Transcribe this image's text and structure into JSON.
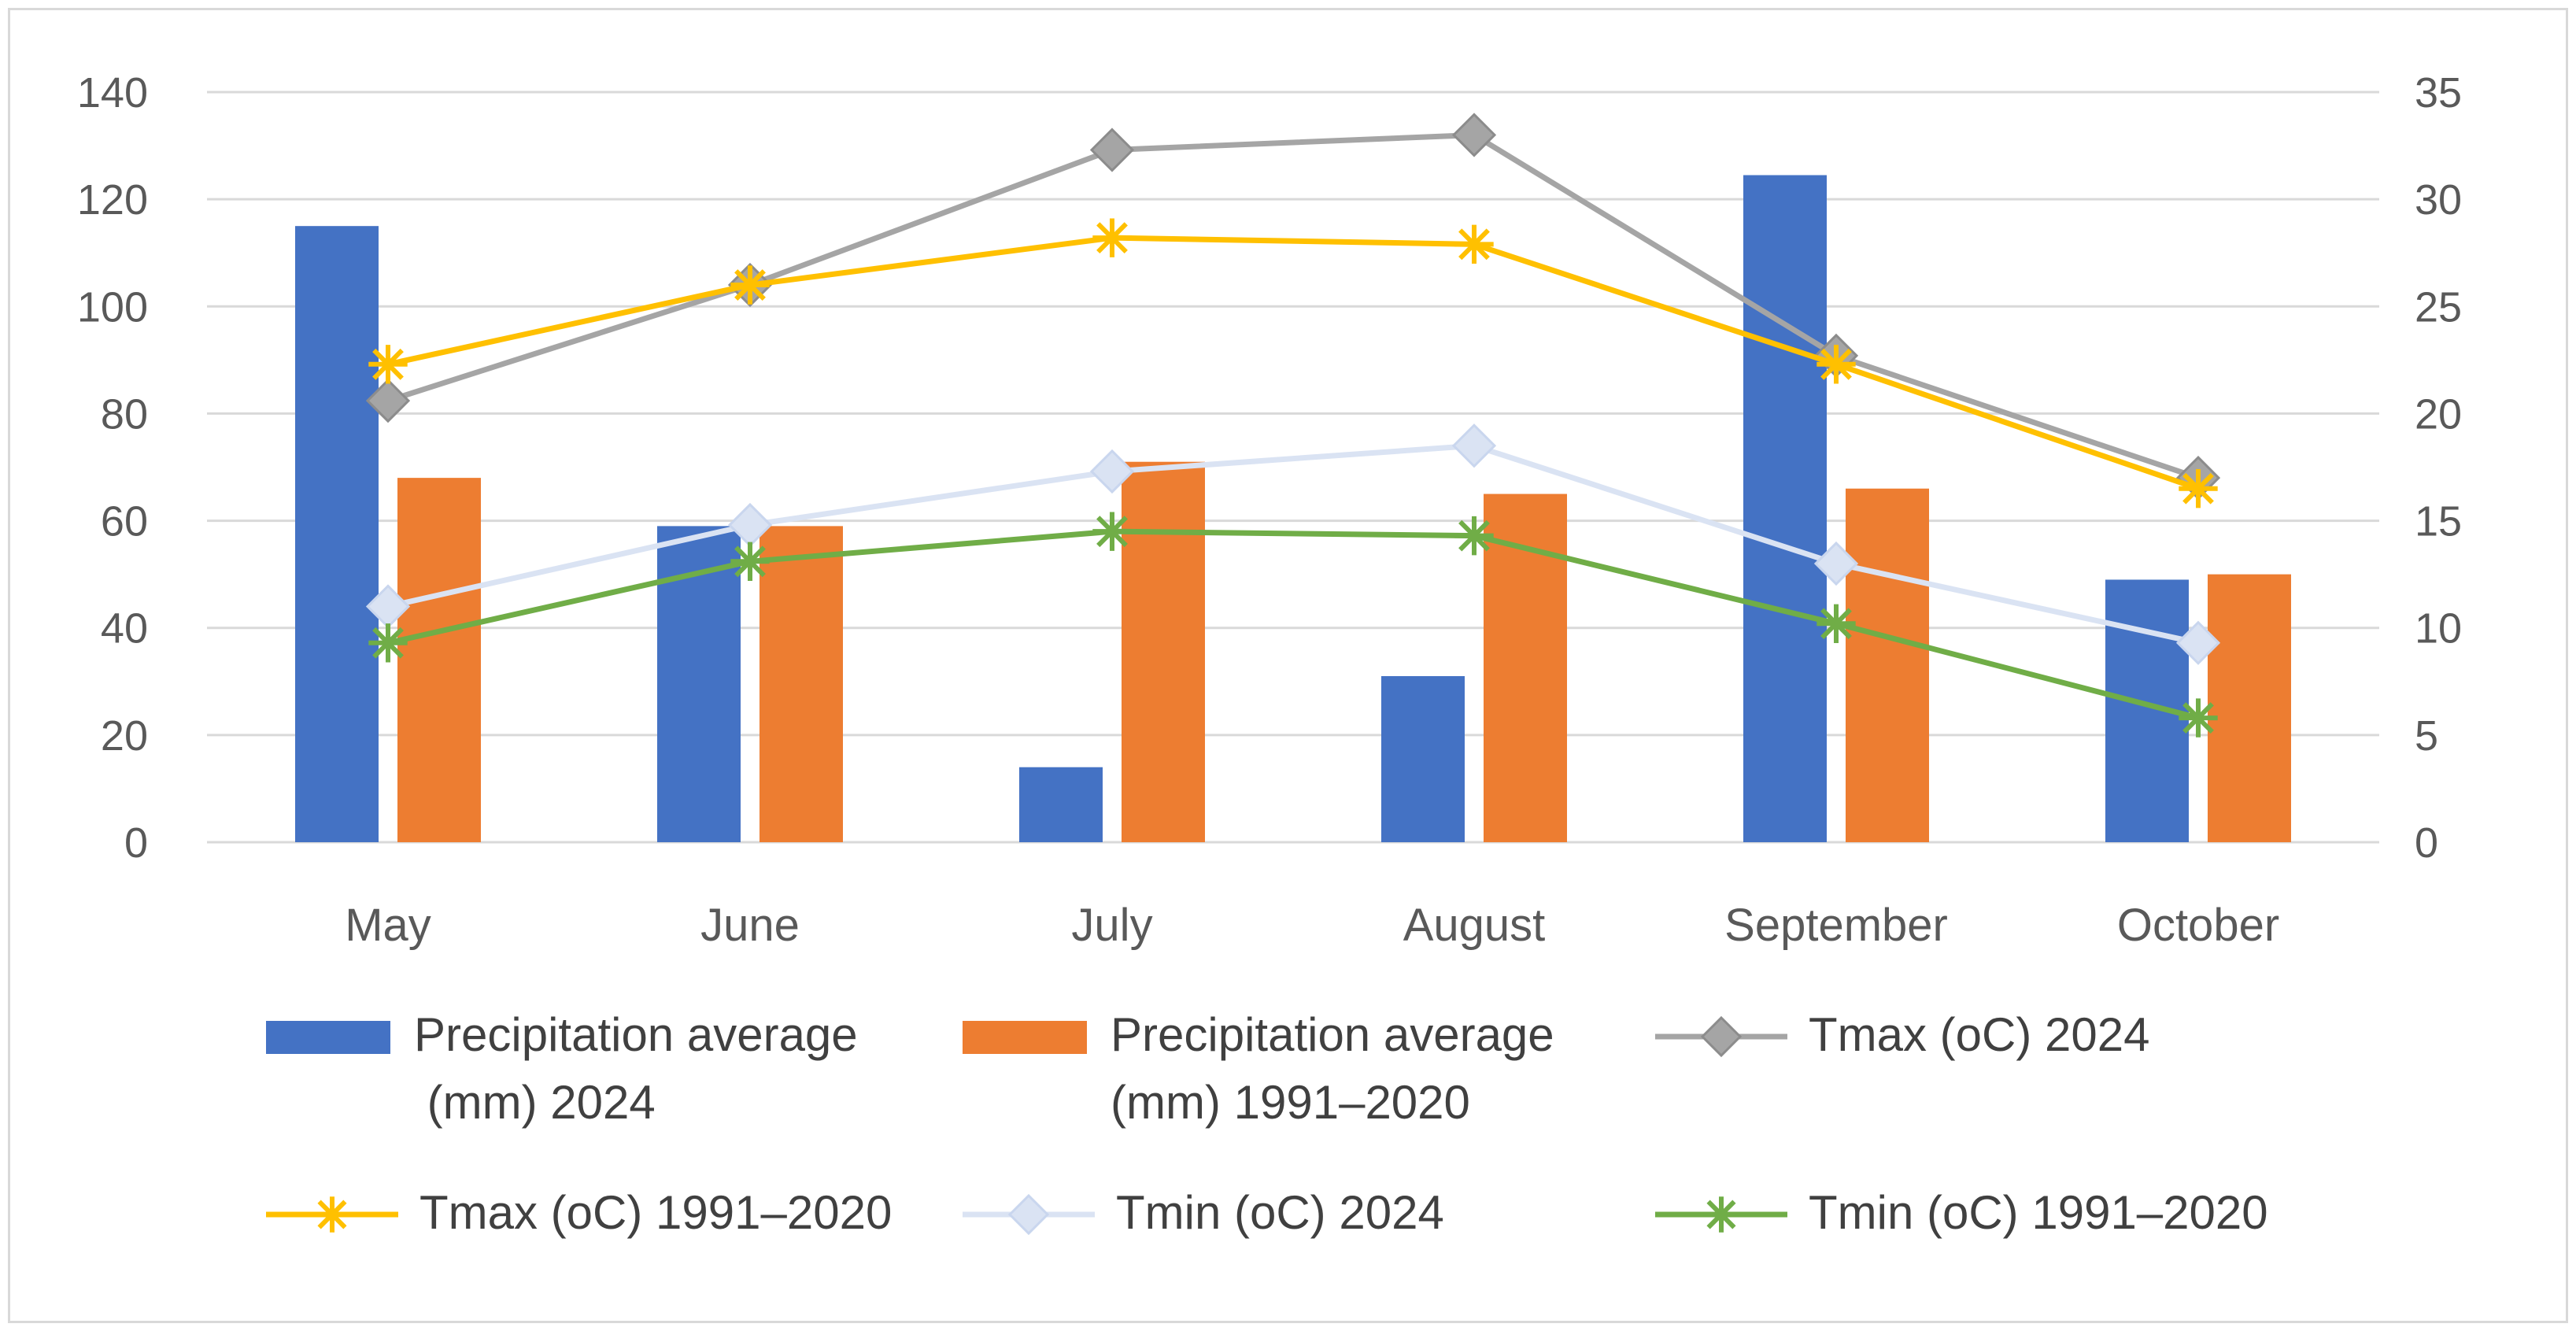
{
  "chart_data": {
    "type": "bar",
    "categories": [
      "May",
      "June",
      "July",
      "August",
      "September",
      "October"
    ],
    "bar_series": [
      {
        "name_lines": [
          "Precipitation average",
          " (mm) 2024"
        ],
        "color": "#4472c4",
        "values": [
          115,
          59,
          14,
          31,
          124.5,
          49
        ]
      },
      {
        "name_lines": [
          "Precipitation average",
          "(mm) 1991–2020"
        ],
        "color": "#ed7d31",
        "values": [
          68,
          59,
          71,
          65,
          66,
          50
        ]
      }
    ],
    "line_series": [
      {
        "name": "Tmax (oC) 2024",
        "color": "#a5a5a5",
        "marker": "diamond",
        "values": [
          20.6,
          26,
          32.3,
          33,
          22.7,
          17
        ]
      },
      {
        "name": "Tmax (oC) 1991–2020",
        "color": "#ffc000",
        "marker": "star",
        "values": [
          22.3,
          26,
          28.2,
          27.9,
          22.3,
          16.5
        ]
      },
      {
        "name": "Tmin (oC) 2024",
        "color": "#dae3f3",
        "marker": "diamond",
        "values": [
          11,
          14.8,
          17.3,
          18.5,
          13,
          9.3
        ]
      },
      {
        "name": "Tmin (oC) 1991–2020",
        "color": "#70ad47",
        "marker": "star",
        "values": [
          9.3,
          13.1,
          14.5,
          14.3,
          10.2,
          5.8
        ]
      }
    ],
    "y_left": {
      "min": 0,
      "max": 140,
      "step": 20,
      "ticks": [
        "0",
        "20",
        "40",
        "60",
        "80",
        "100",
        "120",
        "140"
      ]
    },
    "y_right": {
      "min": 0,
      "max": 35,
      "step": 5,
      "ticks": [
        "0",
        "5",
        "10",
        "15",
        "20",
        "25",
        "30",
        "35"
      ]
    },
    "grid": true,
    "legend_position": "bottom"
  }
}
